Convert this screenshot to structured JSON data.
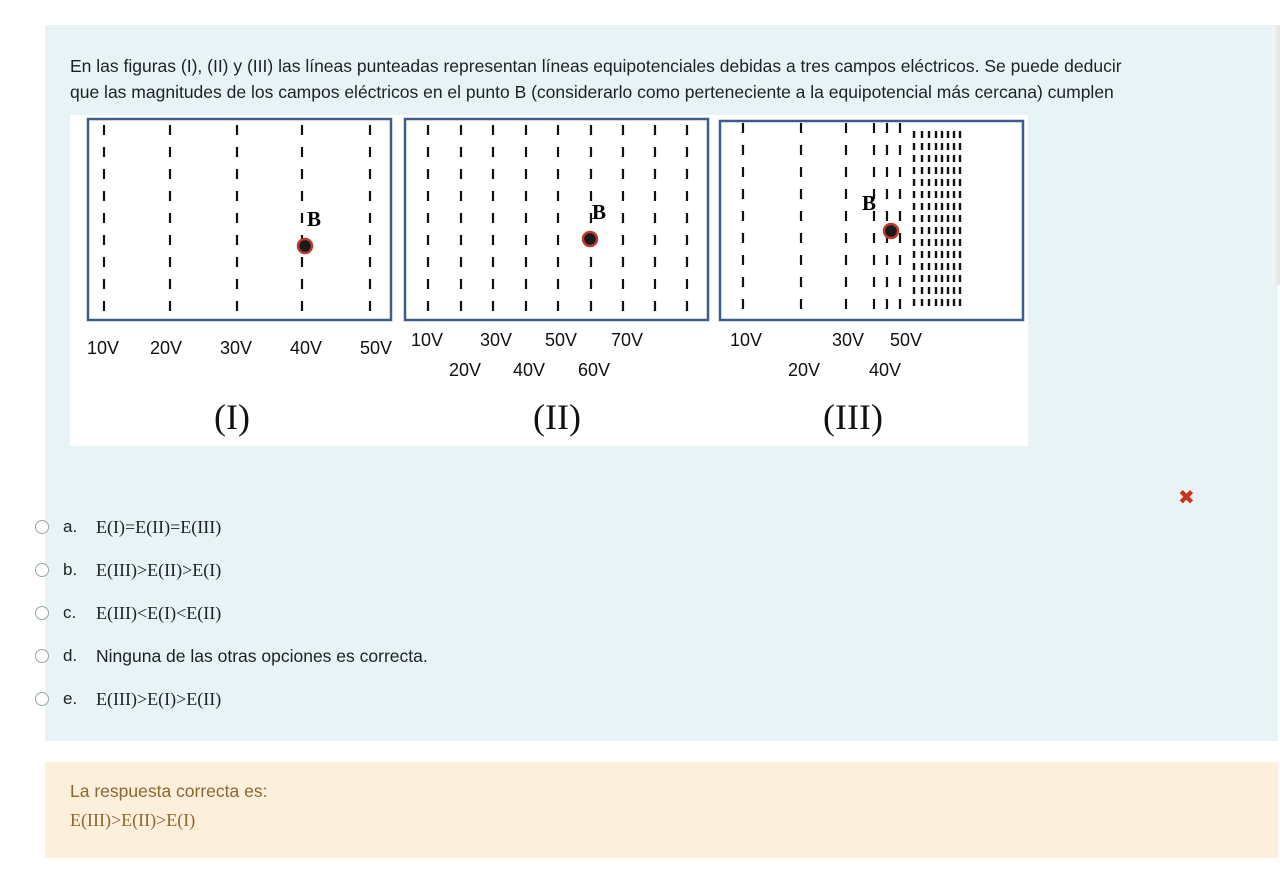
{
  "question": {
    "text_line1": "En las figuras (I), (II) y (III) las líneas punteadas representan líneas equipotenciales debidas a tres campos eléctricos. Se puede deducir",
    "text_line2": "que las magnitudes de los campos eléctricos en el punto B (considerarlo como perteneciente a la equipotencial más cercana) cumplen"
  },
  "figure": {
    "point_label": "B",
    "panels": [
      {
        "caption": "(I)",
        "row1": [
          "10V",
          "20V",
          "30V",
          "40V",
          "50V"
        ],
        "row2": []
      },
      {
        "caption": "(II)",
        "row1": [
          "10V",
          "30V",
          "50V",
          "70V"
        ],
        "row2": [
          "20V",
          "40V",
          "60V"
        ]
      },
      {
        "caption": "(III)",
        "row1": [
          "10V",
          "30V",
          "50V"
        ],
        "row2": [
          "20V",
          "40V"
        ]
      }
    ],
    "colors": {
      "frame": "#3d5c8a",
      "point_fill": "#1a1a1a",
      "point_ring": "#c0392b"
    }
  },
  "answers": [
    {
      "letter": "a.",
      "text": "E(I)=E(II)=E(III)"
    },
    {
      "letter": "b.",
      "text": "E(III)>E(II)>E(I)"
    },
    {
      "letter": "c.",
      "text": "E(III)<E(I)<E(II)"
    },
    {
      "letter": "d.",
      "text": "Ninguna de las otras opciones es correcta."
    },
    {
      "letter": "e.",
      "text": "E(III)>E(I)>E(II)"
    }
  ],
  "status": {
    "incorrect_icon": "times-icon",
    "incorrect_color": "#ca3120"
  },
  "feedback": {
    "label": "La respuesta correcta es:",
    "answer": "E(III)>E(II)>E(I)"
  }
}
